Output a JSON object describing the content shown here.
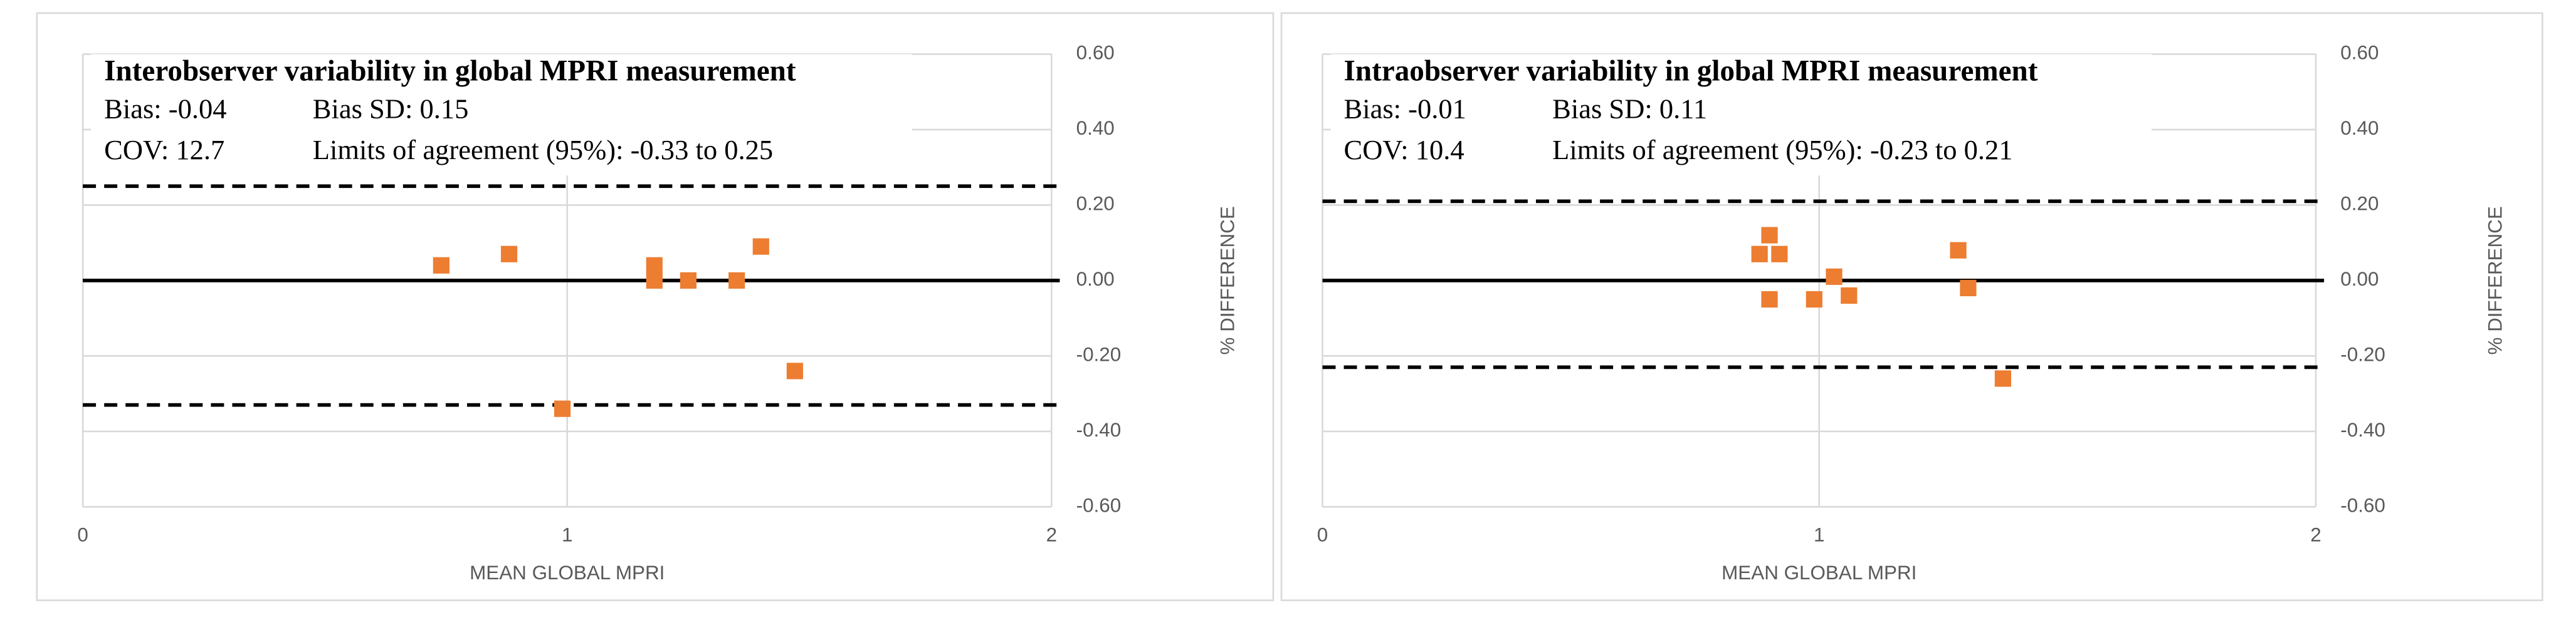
{
  "chart_data": [
    {
      "type": "scatter",
      "title": "Interobserver variability in global MPRI measurement",
      "annotations": [
        "Bias: -0.04",
        "Bias SD: 0.15",
        "COV: 12.7",
        "Limits of agreement (95%):  -0.33 to 0.25"
      ],
      "x_label": "MEAN GLOBAL MPRI",
      "y_label": "% DIFFERENCE",
      "xlim": [
        0,
        2
      ],
      "xticks": [
        0,
        1,
        2
      ],
      "ylim": [
        -0.6,
        0.6
      ],
      "yticks": [
        {
          "value": -0.6,
          "label": "-0.60"
        },
        {
          "value": -0.4,
          "label": "-0.40"
        },
        {
          "value": -0.2,
          "label": "-0.20"
        },
        {
          "value": 0,
          "label": "0.00"
        },
        {
          "value": 0.2,
          "label": "0.20"
        },
        {
          "value": 0.4,
          "label": "0.40"
        },
        {
          "value": 0.6,
          "label": "0.60"
        }
      ],
      "grid": true,
      "color": "#ed7d31",
      "x": [
        0.74,
        0.88,
        0.99,
        1.18,
        1.18,
        1.25,
        1.35,
        1.4,
        1.47
      ],
      "values": [
        0.04,
        0.07,
        -0.34,
        0.04,
        0,
        0,
        0,
        0.09,
        -0.24
      ],
      "reference_lines": [
        {
          "value": 0.25,
          "dashed": true
        },
        {
          "value": 0,
          "dashed": false
        },
        {
          "value": -0.33,
          "dashed": true
        }
      ]
    },
    {
      "type": "scatter",
      "title": "Intraobserver variability in global MPRI measurement",
      "annotations": [
        "Bias: -0.01",
        "Bias SD: 0.11",
        "COV: 10.4",
        "Limits of agreement (95%):  -0.23 to 0.21"
      ],
      "x_label": "MEAN GLOBAL MPRI",
      "y_label": "% DIFFERENCE",
      "xlim": [
        0,
        2
      ],
      "xticks": [
        0,
        1,
        2
      ],
      "ylim": [
        -0.6,
        0.6
      ],
      "yticks": [
        {
          "value": -0.6,
          "label": "-0.60"
        },
        {
          "value": -0.4,
          "label": "-0.40"
        },
        {
          "value": -0.2,
          "label": "-0.20"
        },
        {
          "value": 0,
          "label": "0.00"
        },
        {
          "value": 0.2,
          "label": "0.20"
        },
        {
          "value": 0.4,
          "label": "0.40"
        },
        {
          "value": 0.6,
          "label": "0.60"
        }
      ],
      "grid": true,
      "color": "#ed7d31",
      "x": [
        0.88,
        0.9,
        0.9,
        0.92,
        0.99,
        1.03,
        1.06,
        1.28,
        1.3,
        1.37
      ],
      "values": [
        0.07,
        0.12,
        -0.05,
        0.07,
        -0.05,
        0.01,
        -0.04,
        0.08,
        -0.02,
        -0.26
      ],
      "reference_lines": [
        {
          "value": 0.21,
          "dashed": true
        },
        {
          "value": 0,
          "dashed": false
        },
        {
          "value": -0.23,
          "dashed": true
        }
      ]
    }
  ]
}
